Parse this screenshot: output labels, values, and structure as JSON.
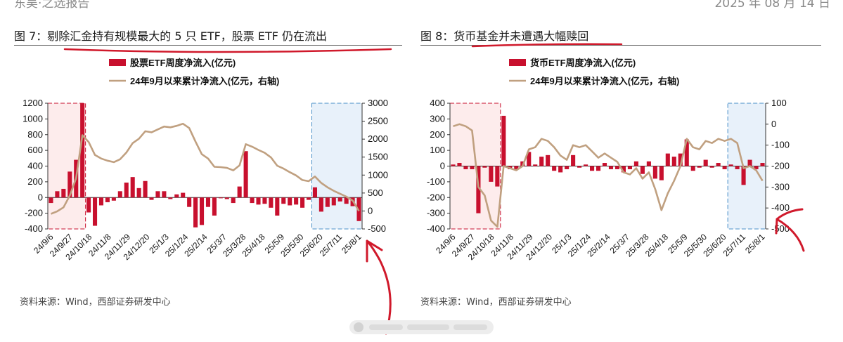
{
  "header": {
    "left_partial": "东吴·之选报告",
    "right_partial": "2025 年 08 月 14 日"
  },
  "panels": [
    {
      "title": "图 7：剔除汇金持有规模最大的 5 只 ETF，股票 ETF 仍在流出",
      "source": "资料来源：Wind，西部证券研发中心"
    },
    {
      "title": "图 8：货币基金并未遭遇大幅赎回",
      "source": "资料来源：Wind，西部证券研发中心"
    }
  ],
  "annotation_color": "#d0192b",
  "chart_data": [
    {
      "type": "bar",
      "title": "图 7：剔除汇金持有规模最大的 5 只 ETF，股票 ETF 仍在流出",
      "legend": [
        "股票ETF周度净流入(亿元)",
        "24年9月以来累计净流入(亿元，右轴)"
      ],
      "legend_placement": "top",
      "colors": {
        "bar": "#c8102e",
        "line": "#c0a080",
        "highlight_left": "#c8102e",
        "highlight_right": "#4a90c8"
      },
      "ylim": [
        -400,
        1200
      ],
      "yticks": [
        -400,
        -200,
        0,
        200,
        400,
        600,
        800,
        1000,
        1200
      ],
      "y2lim": [
        -500,
        3000
      ],
      "y2ticks": [
        -500,
        0,
        500,
        1000,
        1500,
        2000,
        2500,
        3000
      ],
      "grid": false,
      "x_tick_labels": [
        "24/9/6",
        "24/9/27",
        "24/10/18",
        "24/11/8",
        "24/11/29",
        "24/12/20",
        "25/1/3",
        "25/1/24",
        "25/2/14",
        "25/3/7",
        "25/3/28",
        "25/4/18",
        "25/5/9",
        "25/5/30",
        "25/6/20",
        "25/7/11",
        "25/8/1"
      ],
      "series": [
        {
          "name": "股票ETF周度净流入(亿元)",
          "type": "bar",
          "axis": "left",
          "values": [
            -70,
            80,
            110,
            330,
            480,
            1200,
            -190,
            -360,
            -100,
            -60,
            -40,
            80,
            190,
            260,
            120,
            210,
            -30,
            80,
            80,
            -20,
            40,
            60,
            -120,
            -380,
            -350,
            -120,
            -230,
            -10,
            -20,
            -70,
            140,
            590,
            -70,
            -90,
            -80,
            -130,
            -230,
            -80,
            -100,
            -90,
            -130,
            -30,
            130,
            -180,
            -120,
            -100,
            -50,
            -80,
            -110,
            -300
          ]
        },
        {
          "name": "24年9月以来累计净流入(亿元，右轴)",
          "type": "line",
          "axis": "right",
          "values": [
            -80,
            -10,
            100,
            430,
            910,
            2110,
            1920,
            1560,
            1460,
            1400,
            1360,
            1440,
            1630,
            1890,
            2010,
            2220,
            2190,
            2270,
            2350,
            2330,
            2370,
            2430,
            2310,
            1930,
            1580,
            1460,
            1230,
            1220,
            1200,
            1130,
            1270,
            1860,
            1790,
            1700,
            1620,
            1490,
            1260,
            1180,
            1080,
            990,
            860,
            830,
            960,
            780,
            660,
            560,
            480,
            400,
            290,
            0
          ]
        }
      ],
      "highlight_regions": [
        {
          "label": "left",
          "from_index": 0,
          "to_index": 5
        },
        {
          "label": "right",
          "from_index": 42,
          "to_index": 49
        }
      ]
    },
    {
      "type": "bar",
      "title": "图 8：货币基金并未遭遇大幅赎回",
      "legend": [
        "货币ETF周度净流入(亿元)",
        "24年9月以来累计净流入(亿元，右轴)"
      ],
      "legend_placement": "top",
      "colors": {
        "bar": "#c8102e",
        "line": "#c0a080",
        "highlight_left": "#c8102e",
        "highlight_right": "#4a90c8"
      },
      "ylim": [
        -400,
        400
      ],
      "yticks": [
        -400,
        -300,
        -200,
        -100,
        0,
        100,
        200,
        300,
        400
      ],
      "y2lim": [
        -500,
        100
      ],
      "y2ticks": [
        -500,
        -400,
        -300,
        -200,
        -100,
        0,
        100
      ],
      "grid": false,
      "x_tick_labels": [
        "24/9/6",
        "24/9/27",
        "24/10/18",
        "24/11/8",
        "24/11/29",
        "24/12/20",
        "25/1/3",
        "25/1/24",
        "25/2/14",
        "25/3/7",
        "25/3/28",
        "25/4/18",
        "25/5/9",
        "25/5/30",
        "25/6/20",
        "25/7/11",
        "25/8/1"
      ],
      "series": [
        {
          "name": "货币ETF周度净流入(亿元)",
          "type": "bar",
          "axis": "left",
          "values": [
            10,
            20,
            -20,
            -20,
            -300,
            -10,
            -100,
            -130,
            320,
            -20,
            -20,
            30,
            90,
            10,
            60,
            70,
            -30,
            -40,
            -20,
            70,
            -10,
            10,
            -30,
            -30,
            20,
            -20,
            -20,
            -40,
            -20,
            30,
            -50,
            30,
            -80,
            -90,
            80,
            60,
            80,
            170,
            -30,
            -10,
            40,
            -10,
            20,
            -20,
            10,
            -20,
            -120,
            40,
            -20,
            20
          ]
        },
        {
          "name": "24年9月以来累计净流入(亿元，右轴)",
          "type": "line",
          "axis": "right",
          "values": [
            -10,
            0,
            -10,
            -30,
            -300,
            -340,
            -460,
            -490,
            -200,
            -210,
            -220,
            -200,
            -120,
            -110,
            -70,
            -80,
            -110,
            -150,
            -170,
            -100,
            -110,
            -100,
            -130,
            -160,
            -140,
            -160,
            -180,
            -230,
            -240,
            -210,
            -260,
            -230,
            -310,
            -410,
            -330,
            -270,
            -200,
            -70,
            -110,
            -120,
            -80,
            -90,
            -70,
            -80,
            -70,
            -90,
            -210,
            -200,
            -220,
            -270
          ]
        }
      ],
      "highlight_regions": [
        {
          "label": "left",
          "from_index": 0,
          "to_index": 7
        },
        {
          "label": "right",
          "from_index": 44,
          "to_index": 49
        }
      ]
    }
  ]
}
